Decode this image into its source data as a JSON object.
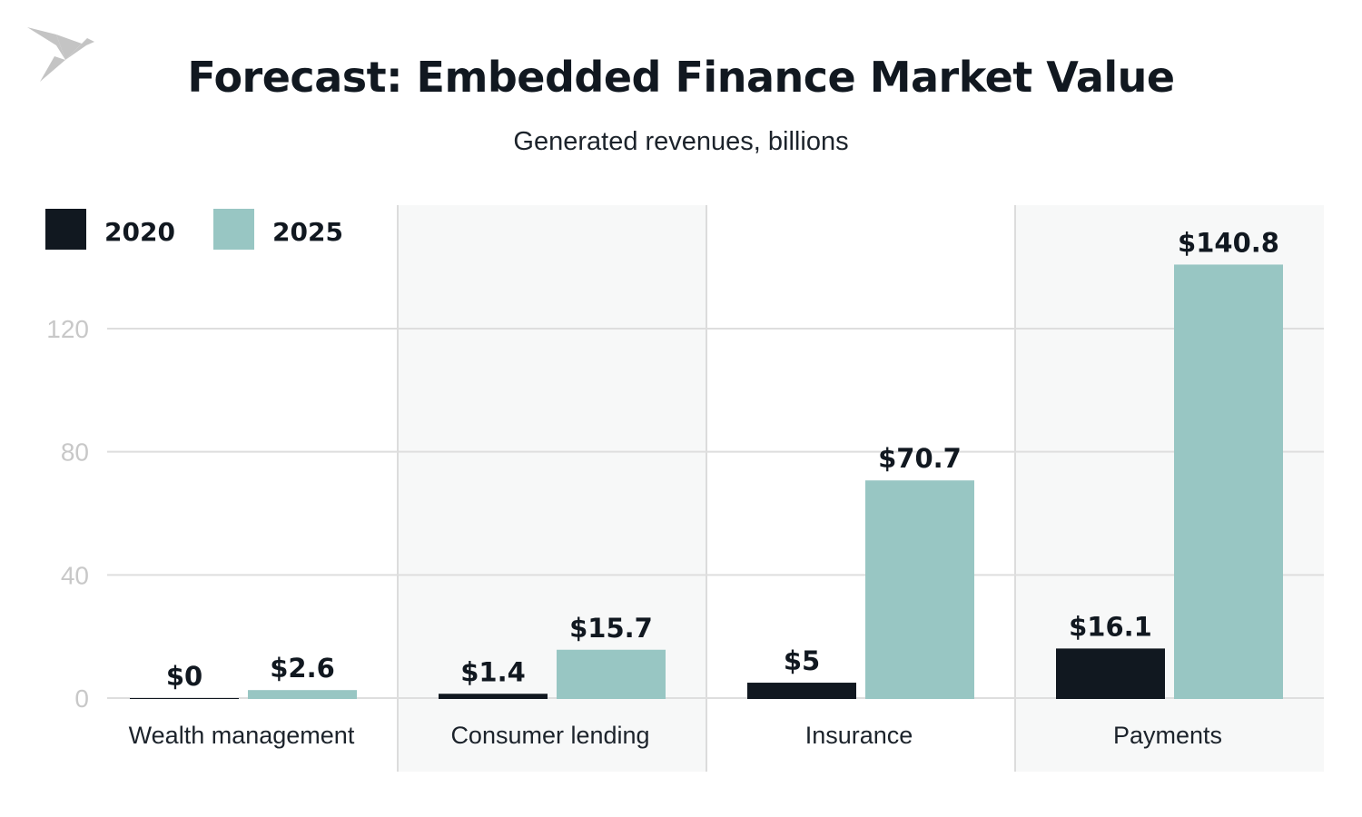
{
  "chart_data": {
    "type": "bar",
    "title": "Forecast: Embedded Finance Market Value",
    "subtitle": "Generated revenues, billions",
    "categories": [
      "Wealth management",
      "Consumer lending",
      "Insurance",
      "Payments"
    ],
    "series": [
      {
        "name": "2020",
        "color": "#111820",
        "values": [
          0,
          1.4,
          5,
          16.1
        ],
        "labels": [
          "$0",
          "$1.4",
          "$5",
          "$16.1"
        ]
      },
      {
        "name": "2025",
        "color": "#98c6c3",
        "values": [
          2.6,
          15.7,
          70.7,
          140.8
        ],
        "labels": [
          "$2.6",
          "$15.7",
          "$70.7",
          "$140.8"
        ]
      }
    ],
    "yticks": [
      0,
      40,
      80,
      120
    ],
    "ylim": [
      0,
      160
    ],
    "grid": true,
    "legend_position": "top-left",
    "panel_shading_color": "#f7f8f8",
    "logo_icon": "origami-bird-icon"
  }
}
